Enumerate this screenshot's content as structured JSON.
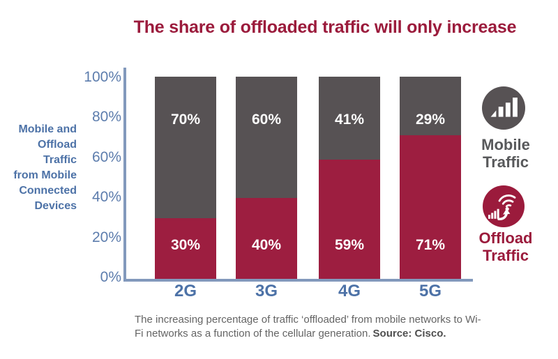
{
  "title": {
    "text": "The share of offloaded traffic will only increase"
  },
  "y_axis": {
    "label": "Mobile and\nOffload\nTraffic\nfrom Mobile\nConnected\nDevices",
    "ticks": [
      "100%",
      "80%",
      "60%",
      "40%",
      "20%",
      "0%"
    ]
  },
  "legend": {
    "mobile": {
      "icon": "signal-bars-icon",
      "label": "Mobile\nTraffic",
      "color": "#58595B"
    },
    "offload": {
      "icon": "wifi-offload-icon",
      "label": "Offload\nTraffic",
      "color": "#9B1B3C"
    }
  },
  "caption": {
    "text": "The increasing percentage of traffic ‘offloaded’ from mobile networks to Wi-Fi networks as a function of the cellular generation.",
    "source": "Source: Cisco."
  },
  "colors": {
    "title_red": "#9B1B3C",
    "offload_red": "#9D1E40",
    "mobile_gray": "#575254",
    "axis_blue": "#5D7DAD",
    "category_blue": "#4D72A7",
    "axis_line": "#8299BC",
    "value_label_white": "#FFFFFF",
    "caption_gray": "#646464"
  },
  "chart_data": {
    "type": "bar",
    "stacked": true,
    "categories": [
      "2G",
      "3G",
      "4G",
      "5G"
    ],
    "series": [
      {
        "name": "Offload Traffic",
        "values": [
          30,
          40,
          59,
          71
        ],
        "color": "#9D1E40"
      },
      {
        "name": "Mobile Traffic",
        "values": [
          70,
          60,
          41,
          29
        ],
        "color": "#575254"
      }
    ],
    "value_labels": true,
    "title": "The share of offloaded traffic will only increase",
    "xlabel": "",
    "ylabel": "Mobile and Offload Traffic from Mobile Connected Devices",
    "ylim": [
      0,
      100
    ],
    "y_tick_step": 20,
    "grid": false,
    "legend_position": "right"
  }
}
